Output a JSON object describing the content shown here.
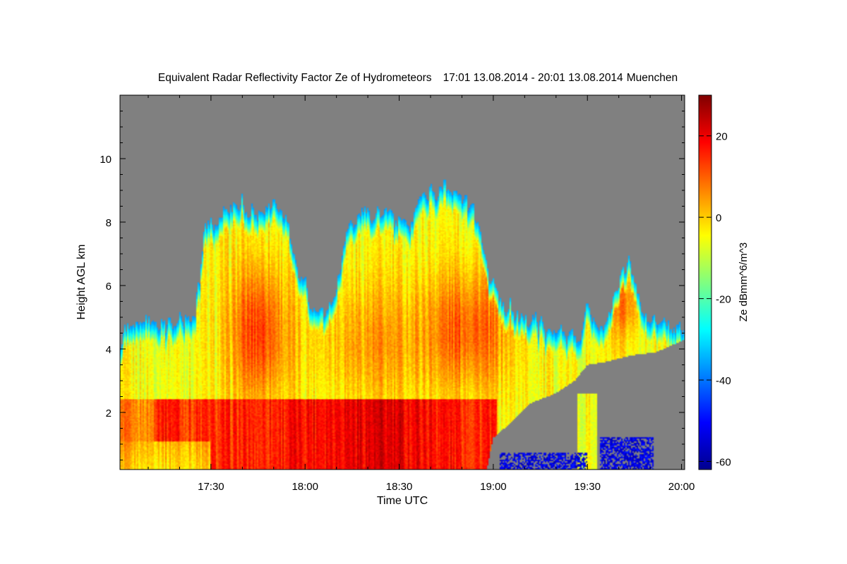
{
  "chart_data": {
    "type": "heatmap",
    "title": "Equivalent Radar Reflectivity Factor Ze of Hydrometeors",
    "period": "17:01 13.08.2014 - 20:01 13.08.2014",
    "station": "Muenchen",
    "xlabel": "Time UTC",
    "ylabel": "Height AGL km",
    "x_ticks": [
      "17:30",
      "18:00",
      "18:30",
      "19:00",
      "19:30",
      "20:00"
    ],
    "x_tick_minutes": [
      30,
      60,
      90,
      120,
      150,
      180
    ],
    "xlim_minutes_after_1700": [
      1,
      181
    ],
    "y_ticks": [
      2,
      4,
      6,
      8,
      10
    ],
    "ylim_km": [
      0.2,
      12.0
    ],
    "colorbar": {
      "label": "Ze dBmm^6/m^3",
      "ticks": [
        20,
        0,
        -20,
        -40,
        -60
      ],
      "range": [
        -62,
        30
      ],
      "colormap": "jet"
    },
    "background_color": "#808080",
    "features": {
      "melting_layer_km": 2.4,
      "echo_top_max_km": 9.2,
      "echo_top_time": "18:41"
    }
  }
}
